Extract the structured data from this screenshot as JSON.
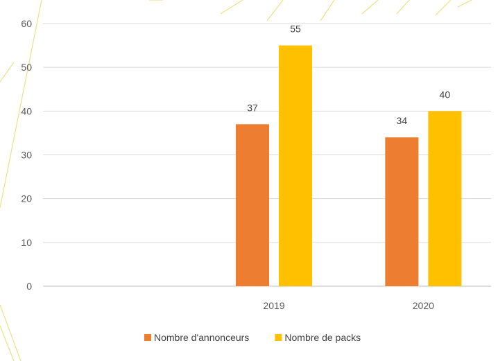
{
  "chart_data": {
    "type": "bar",
    "categories": [
      "",
      "2019",
      "2020"
    ],
    "series": [
      {
        "name": "Nombre d'annonceurs",
        "values": [
          null,
          37,
          34
        ],
        "color": "#ED7D31"
      },
      {
        "name": "Nombre de packs",
        "values": [
          null,
          55,
          40
        ],
        "color": "#FFC000"
      }
    ],
    "ylim": [
      0,
      60
    ],
    "yticks": [
      0,
      10,
      20,
      30,
      40,
      50,
      60
    ],
    "grid": true,
    "legend": "bottom",
    "title": "",
    "xlabel": "",
    "ylabel": ""
  },
  "colors": {
    "decoration_lines": "#e8e38a"
  }
}
